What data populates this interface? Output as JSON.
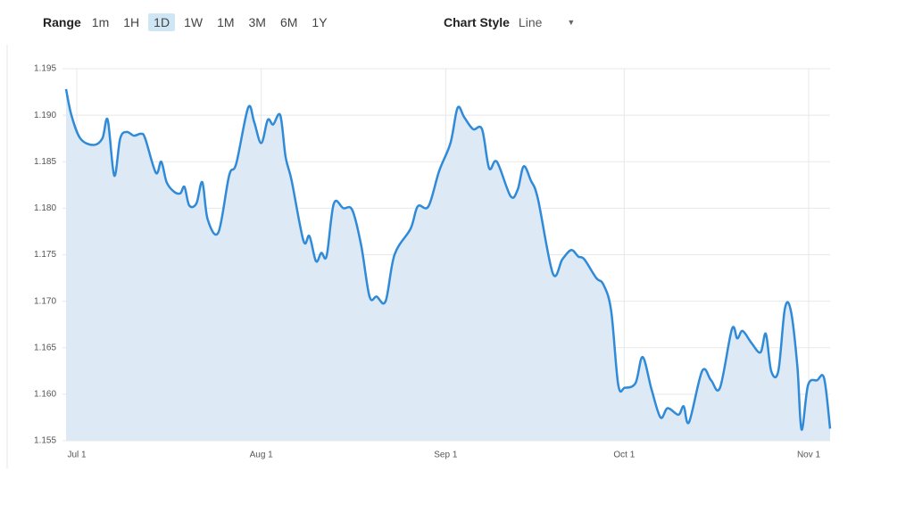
{
  "toolbar": {
    "range_label": "Range",
    "range_options": [
      "1m",
      "1H",
      "1D",
      "1W",
      "1M",
      "3M",
      "6M",
      "1Y"
    ],
    "selected_index": 2,
    "style_label": "Chart Style",
    "style_value": "Line"
  },
  "chart_data": {
    "type": "area",
    "color": "#2f8ad8",
    "fill": "#dde9f5",
    "grid": true,
    "x": [
      -1.8,
      -0.9,
      0.6,
      2.8,
      4.3,
      5.2,
      6.3,
      7.3,
      8.4,
      9.6,
      10.8,
      11.5,
      13.3,
      14.2,
      15.1,
      16.3,
      17.4,
      18.1,
      18.9,
      20.1,
      21.1,
      22.0,
      23.8,
      25.6,
      26.8,
      28.8,
      29.8,
      31.0,
      32.1,
      33.0,
      34.2,
      35.1,
      36.1,
      38.1,
      39.1,
      40.2,
      41.1,
      42.0,
      43.2,
      44.8,
      46.3,
      47.8,
      49.2,
      50.4,
      51.9,
      53.4,
      56.1,
      57.3,
      59.1,
      60.9,
      62.8,
      64.0,
      65.1,
      66.6,
      68.1,
      69.3,
      70.6,
      72.9,
      74.1,
      75.1,
      76.3,
      77.5,
      80.0,
      81.6,
      83.1,
      84.3,
      85.3,
      87.3,
      88.5,
      89.8,
      91.0,
      92.1,
      93.9,
      95.1,
      96.6,
      98.1,
      99.3,
      101.1,
      102.0,
      102.9,
      105.1,
      106.6,
      108.1,
      110.1,
      111.0,
      111.9,
      113.4,
      114.9,
      115.8,
      116.7,
      117.9,
      119.0,
      120.0,
      121.1,
      121.8,
      122.9,
      124.4,
      125.6,
      126.6
    ],
    "values": [
      1.1928,
      1.19,
      1.1875,
      1.1868,
      1.1875,
      1.1895,
      1.1835,
      1.1875,
      1.1882,
      1.1878,
      1.188,
      1.1875,
      1.1838,
      1.185,
      1.1828,
      1.1818,
      1.1816,
      1.1823,
      1.1803,
      1.1805,
      1.1828,
      1.1788,
      1.1774,
      1.1835,
      1.1848,
      1.1908,
      1.1893,
      1.187,
      1.1895,
      1.189,
      1.19,
      1.1855,
      1.183,
      1.1765,
      1.177,
      1.1743,
      1.1752,
      1.1749,
      1.1805,
      1.18,
      1.1798,
      1.176,
      1.1705,
      1.1705,
      1.17,
      1.175,
      1.1778,
      1.1802,
      1.1802,
      1.184,
      1.187,
      1.1908,
      1.1898,
      1.1885,
      1.1885,
      1.1843,
      1.185,
      1.1813,
      1.182,
      1.1845,
      1.183,
      1.181,
      1.173,
      1.1745,
      1.1755,
      1.1748,
      1.1745,
      1.1725,
      1.1718,
      1.169,
      1.161,
      1.1607,
      1.1612,
      1.164,
      1.1605,
      1.1575,
      1.1585,
      1.1578,
      1.1587,
      1.157,
      1.1625,
      1.1615,
      1.1607,
      1.167,
      1.166,
      1.1668,
      1.1655,
      1.1645,
      1.1665,
      1.1625,
      1.1625,
      1.1692,
      1.169,
      1.163,
      1.1562,
      1.161,
      1.1615,
      1.1617,
      1.1563
    ],
    "xlim": [
      -2.4,
      126.6
    ],
    "xticks": [
      {
        "value": 0,
        "label": "Jul 1"
      },
      {
        "value": 31,
        "label": "Aug 1"
      },
      {
        "value": 62,
        "label": "Sep 1"
      },
      {
        "value": 92,
        "label": "Oct 1"
      },
      {
        "value": 123,
        "label": "Nov 1"
      }
    ],
    "ylim": [
      1.155,
      1.195
    ],
    "yticks": [
      1.155,
      {
        "value": 1.16,
        "label": "1.160"
      },
      1.165,
      {
        "value": 1.17,
        "label": "1.170"
      },
      1.175,
      {
        "value": 1.18,
        "label": "1.180"
      },
      1.185,
      {
        "value": 1.19,
        "label": "1.190"
      },
      1.195
    ]
  }
}
